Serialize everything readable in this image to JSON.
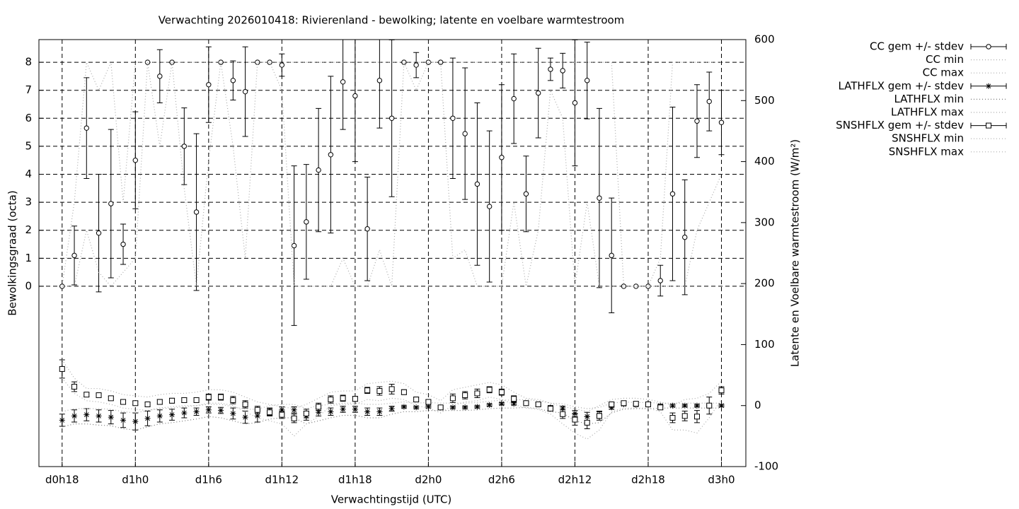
{
  "chart_data": {
    "type": "errorbar-line",
    "title": "Verwachting 2026010418: Rivierenland - bewolking; latente en voelbare warmtestroom",
    "xlabel": "Verwachtingstijd (UTC)",
    "ylabel": "Bewolkingsgraad (octa)",
    "y2label": "Latente en Voelbare warmtestroom (W/m²)",
    "grid": true,
    "legend": "outside-top-right",
    "xlim": [
      16.1,
      74.0
    ],
    "ylim": [
      -6.44,
      8.81
    ],
    "y2lim": [
      -100,
      600
    ],
    "xticks": [
      {
        "value": 18,
        "label": "d0h18"
      },
      {
        "value": 24,
        "label": "d1h0"
      },
      {
        "value": 30,
        "label": "d1h6"
      },
      {
        "value": 36,
        "label": "d1h12"
      },
      {
        "value": 42,
        "label": "d1h18"
      },
      {
        "value": 48,
        "label": "d2h0"
      },
      {
        "value": 54,
        "label": "d2h6"
      },
      {
        "value": 60,
        "label": "d2h12"
      },
      {
        "value": 66,
        "label": "d2h18"
      },
      {
        "value": 72,
        "label": "d3h0"
      }
    ],
    "yticks": [
      0,
      1,
      2,
      3,
      4,
      5,
      6,
      7,
      8
    ],
    "y2ticks": [
      -100,
      0,
      100,
      200,
      300,
      400,
      500,
      600
    ],
    "x": [
      18,
      19,
      20,
      21,
      22,
      23,
      24,
      25,
      26,
      27,
      28,
      29,
      30,
      31,
      32,
      33,
      34,
      35,
      36,
      37,
      38,
      39,
      40,
      41,
      42,
      43,
      44,
      45,
      46,
      47,
      48,
      49,
      50,
      51,
      52,
      53,
      54,
      55,
      56,
      57,
      58,
      59,
      60,
      61,
      62,
      63,
      64,
      65,
      66,
      67,
      68,
      69,
      70,
      71,
      72
    ],
    "series": [
      {
        "name": "CC gem +/- stdev",
        "style": "errorbars",
        "marker": "circle",
        "color": "#000000",
        "values": [
          0,
          1.1,
          5.65,
          1.9,
          2.95,
          1.5,
          4.5,
          8,
          7.5,
          8,
          5.0,
          2.65,
          7.2,
          8,
          7.35,
          6.95,
          8,
          8,
          7.9,
          1.45,
          2.3,
          4.15,
          4.7,
          7.3,
          6.8,
          2.05,
          7.35,
          6.0,
          8,
          7.9,
          8,
          8,
          6.0,
          5.45,
          3.65,
          2.85,
          4.6,
          6.7,
          3.3,
          6.9,
          7.75,
          7.7,
          6.55,
          7.35,
          3.15,
          1.1,
          0,
          0,
          0,
          0.2,
          3.3,
          1.75,
          5.9,
          6.6,
          5.85
        ],
        "errors": [
          0,
          1.05,
          1.8,
          2.1,
          2.65,
          0.72,
          1.73,
          0,
          0.95,
          0,
          1.37,
          2.8,
          1.35,
          0,
          0.7,
          1.6,
          0,
          0,
          0.4,
          2.85,
          2.05,
          2.2,
          2.8,
          1.7,
          2.35,
          1.85,
          1.7,
          2.8,
          0,
          0.45,
          0,
          0,
          2.15,
          2.35,
          2.9,
          2.7,
          2.6,
          1.6,
          1.35,
          1.6,
          0.4,
          0.62,
          2.25,
          1.37,
          3.2,
          2.05,
          0,
          0,
          0,
          0.55,
          3.1,
          2.05,
          1.3,
          1.05,
          1.15
        ]
      },
      {
        "name": "CC min",
        "style": "dotted",
        "color": "#aaaaaa",
        "values": [
          0,
          0,
          2,
          0.5,
          0,
          0.5,
          1,
          8,
          5,
          8,
          3.5,
          0,
          4.5,
          8,
          5,
          1,
          8,
          8,
          7,
          0,
          0,
          0,
          0,
          1,
          0,
          0,
          1.3,
          0,
          8,
          7,
          8,
          8,
          1,
          1.3,
          0,
          0,
          0,
          3,
          0,
          2,
          7,
          6,
          0,
          3,
          0,
          0,
          0,
          0,
          0,
          0,
          0,
          0,
          2,
          3,
          4
        ]
      },
      {
        "name": "CC max",
        "style": "dotted",
        "color": "#aaaaaa",
        "values": [
          0,
          3,
          8,
          7,
          8,
          3,
          8,
          8,
          8,
          8,
          8,
          8,
          8,
          8,
          8,
          8,
          8,
          8,
          8,
          8,
          8,
          8,
          8,
          8,
          8,
          8,
          8,
          8,
          8,
          8,
          8,
          8,
          8,
          8,
          8,
          8,
          8,
          8,
          8,
          8,
          8,
          8,
          8,
          8,
          8,
          8,
          0,
          0,
          0,
          1,
          8,
          8,
          8,
          8,
          8
        ]
      },
      {
        "name": "LATHFLX gem +/- stdev",
        "style": "errorbars",
        "marker": "star",
        "color": "#000000",
        "axis": "y2",
        "values": [
          -24,
          -17,
          -15,
          -17,
          -19,
          -24,
          -26,
          -21,
          -17,
          -15,
          -12,
          -10,
          -7,
          -8,
          -13,
          -19,
          -17,
          -10,
          -7,
          -7,
          -17,
          -11,
          -10,
          -6,
          -6,
          -10,
          -10,
          -5,
          -2,
          -3,
          -2,
          -3,
          -3,
          -3,
          -2,
          1,
          3,
          3,
          4,
          2,
          -3,
          -4,
          -13,
          -18,
          -15,
          -3,
          2,
          1,
          1,
          0,
          0,
          0,
          0,
          0,
          0
        ],
        "errors": [
          10,
          10,
          10,
          10,
          11,
          12,
          14,
          12,
          10,
          9,
          8,
          6,
          5,
          5,
          9,
          10,
          10,
          6,
          5,
          5,
          7,
          6,
          6,
          5,
          5,
          6,
          6,
          4,
          2,
          2,
          2,
          2,
          2,
          2,
          2,
          2,
          2,
          2,
          2,
          2,
          3,
          3,
          5,
          7,
          6,
          3,
          2,
          2,
          2,
          2,
          2,
          2,
          2,
          2,
          2
        ]
      },
      {
        "name": "LATHFLX min",
        "style": "dotted",
        "color": "#777777",
        "axis": "y2",
        "values": [
          -35,
          -30,
          -30,
          -32,
          -33,
          -38,
          -40,
          -35,
          -30,
          -28,
          -25,
          -22,
          -18,
          -20,
          -25,
          -30,
          -28,
          -22,
          -20,
          -20,
          -30,
          -25,
          -20,
          -16,
          -16,
          -20,
          -20,
          -14,
          -10,
          -10,
          -8,
          -8,
          -8,
          -8,
          -7,
          -5,
          -4,
          -4,
          -3,
          -5,
          -10,
          -12,
          -25,
          -30,
          -28,
          -12,
          -6,
          -5,
          -5,
          -4,
          -4,
          -4,
          -4,
          -4,
          -4
        ]
      },
      {
        "name": "LATHFLX max",
        "style": "dotted",
        "color": "#aaaaaa",
        "axis": "y2",
        "values": [
          -10,
          -5,
          -5,
          -5,
          -6,
          -10,
          -12,
          -8,
          -5,
          -4,
          -2,
          0,
          2,
          2,
          -2,
          -6,
          -6,
          0,
          2,
          2,
          -5,
          0,
          2,
          4,
          4,
          2,
          2,
          4,
          6,
          4,
          5,
          4,
          4,
          4,
          5,
          7,
          9,
          9,
          10,
          8,
          4,
          3,
          -2,
          -5,
          -3,
          4,
          6,
          5,
          5,
          4,
          4,
          4,
          4,
          4,
          4
        ]
      },
      {
        "name": "SNSHFLX gem +/- stdev",
        "style": "errorbars",
        "marker": "square",
        "color": "#000000",
        "axis": "y2",
        "values": [
          60,
          31,
          18,
          17,
          12,
          6,
          4,
          2,
          6,
          8,
          9,
          9,
          14,
          14,
          9,
          2,
          -7,
          -11,
          -15,
          -21,
          -13,
          -2,
          10,
          12,
          11,
          25,
          24,
          27,
          22,
          10,
          6,
          -3,
          12,
          17,
          20,
          26,
          22,
          11,
          4,
          2,
          -5,
          -14,
          -23,
          -28,
          -17,
          2,
          4,
          3,
          2,
          -3,
          -20,
          -17,
          -18,
          0,
          25
        ],
        "errors": [
          15,
          8,
          3,
          3,
          3,
          3,
          3,
          3,
          4,
          4,
          4,
          4,
          5,
          5,
          6,
          6,
          6,
          6,
          6,
          7,
          7,
          6,
          6,
          5,
          4,
          5,
          7,
          8,
          4,
          4,
          3,
          3,
          7,
          6,
          7,
          5,
          5,
          5,
          3,
          3,
          4,
          7,
          9,
          10,
          7,
          4,
          3,
          3,
          3,
          3,
          8,
          8,
          10,
          14,
          6
        ]
      },
      {
        "name": "SNSHFLX min",
        "style": "dotted",
        "color": "#aaaaaa",
        "axis": "y2",
        "values": [
          45,
          20,
          8,
          6,
          2,
          -4,
          -6,
          -8,
          -4,
          -2,
          0,
          0,
          4,
          4,
          0,
          -10,
          -20,
          -25,
          -30,
          -50,
          -30,
          -18,
          0,
          2,
          2,
          10,
          8,
          12,
          10,
          0,
          -4,
          -12,
          0,
          6,
          8,
          14,
          10,
          2,
          -4,
          -6,
          -14,
          -30,
          -45,
          -55,
          -40,
          -10,
          -4,
          -4,
          -4,
          -10,
          -40,
          -40,
          -45,
          -20,
          10
        ]
      },
      {
        "name": "SNSHFLX max",
        "style": "dotted",
        "color": "#aaaaaa",
        "axis": "y2",
        "values": [
          75,
          45,
          28,
          28,
          24,
          18,
          16,
          14,
          18,
          20,
          20,
          22,
          26,
          26,
          22,
          14,
          6,
          2,
          -2,
          -5,
          2,
          12,
          22,
          24,
          24,
          36,
          38,
          40,
          36,
          22,
          18,
          8,
          26,
          30,
          34,
          38,
          34,
          22,
          12,
          10,
          4,
          -2,
          -5,
          -10,
          0,
          10,
          12,
          12,
          10,
          6,
          0,
          10,
          12,
          20,
          40
        ]
      }
    ]
  }
}
